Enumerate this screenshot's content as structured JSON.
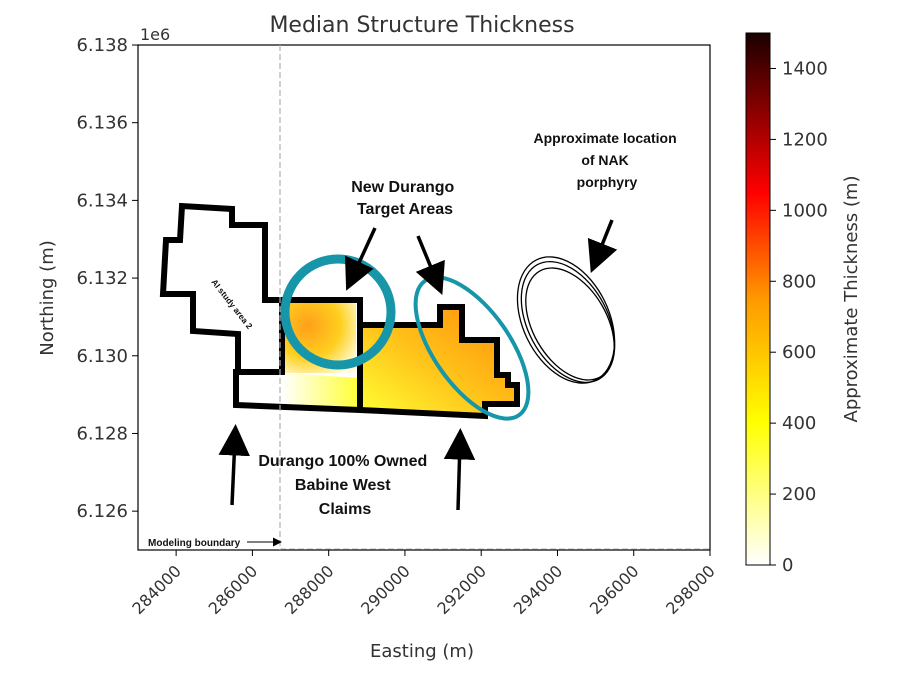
{
  "chart_data": {
    "type": "heatmap",
    "title": "Median Structure Thickness",
    "xlabel": "Easting (m)",
    "ylabel": "Northing (m)",
    "y_offset_label": "1e6",
    "xlim": [
      283000,
      298000
    ],
    "ylim": [
      6.125,
      6.138
    ],
    "x_ticks": [
      284000,
      286000,
      288000,
      290000,
      292000,
      294000,
      296000,
      298000
    ],
    "y_ticks": [
      6.126,
      6.128,
      6.13,
      6.132,
      6.134,
      6.136,
      6.138
    ],
    "x_tick_labels": [
      "284000",
      "286000",
      "288000",
      "290000",
      "292000",
      "294000",
      "296000",
      "298000"
    ],
    "y_tick_labels": [
      "6.126",
      "6.128",
      "6.130",
      "6.132",
      "6.134",
      "6.136",
      "6.138"
    ],
    "colorbar": {
      "label": "Approximate Thickness (m)",
      "range": [
        0,
        1500
      ],
      "ticks": [
        0,
        200,
        400,
        600,
        800,
        1000,
        1200,
        1400
      ],
      "tick_labels": [
        "0",
        "200",
        "400",
        "600",
        "800",
        "1000",
        "1200",
        "1400"
      ],
      "colormap": [
        "#ffffff",
        "#ffff00",
        "#ff9900",
        "#ff0000",
        "#1a0000"
      ]
    },
    "thickness_field": [
      {
        "easting": 287500,
        "northing": 6.1308,
        "value": 500
      },
      {
        "easting": 288200,
        "northing": 6.1305,
        "value": 560
      },
      {
        "easting": 289500,
        "northing": 6.1301,
        "value": 580
      },
      {
        "easting": 290500,
        "northing": 6.13,
        "value": 620
      },
      {
        "easting": 291500,
        "northing": 6.1297,
        "value": 640
      },
      {
        "easting": 292300,
        "northing": 6.1292,
        "value": 660
      },
      {
        "easting": 288000,
        "northing": 6.1289,
        "value": 330
      },
      {
        "easting": 290000,
        "northing": 6.1288,
        "value": 380
      },
      {
        "easting": 287300,
        "northing": 6.1289,
        "value": 150
      }
    ],
    "colors": {
      "claim_outline": "#000000",
      "target_ellipse": "#1796a9",
      "boundary_line": "#b0b0b0"
    },
    "annotations": {
      "new_durango": "New Durango\nTarget Areas",
      "nak": "Approximate location\nof NAK\nporphyry",
      "owned": "Durango 100% Owned\nBabine West\nClaims",
      "study_area": "AI study area 2",
      "modeling_boundary": "Modeling boundary"
    }
  }
}
